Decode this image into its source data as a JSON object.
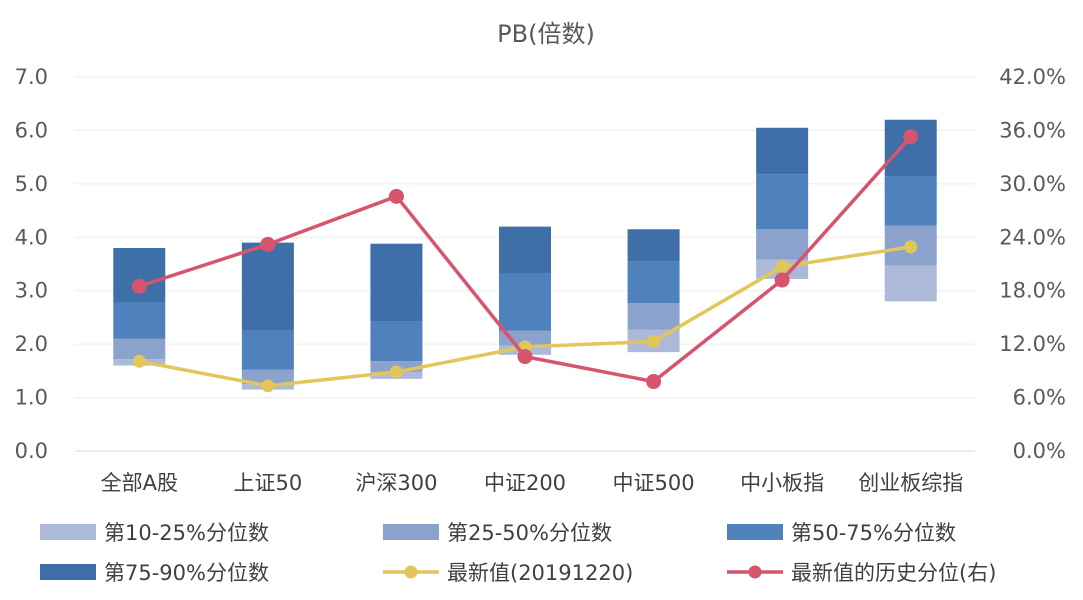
{
  "chart_data": {
    "type": "bar",
    "title": "PB(倍数)",
    "categories": [
      "全部A股",
      "上证50",
      "沪深300",
      "中证200",
      "中证500",
      "中小板指",
      "创业板综指"
    ],
    "y_left_ticks": [
      "7.0",
      "6.0",
      "5.0",
      "4.0",
      "3.0",
      "2.0",
      "1.0",
      "0.0"
    ],
    "y_right_ticks": [
      "42.0%",
      "36.0%",
      "30.0%",
      "24.0%",
      "18.0%",
      "12.0%",
      "6.0%",
      "0.0%"
    ],
    "ylim_left": [
      0,
      7
    ],
    "ylim_right": [
      0,
      42
    ],
    "floating_bars": {
      "p10": [
        1.6,
        1.15,
        1.35,
        1.8,
        1.85,
        3.22,
        2.8
      ],
      "p25": [
        1.72,
        1.25,
        1.48,
        1.97,
        2.27,
        3.58,
        3.47
      ],
      "p50": [
        2.1,
        1.52,
        1.68,
        2.25,
        2.77,
        4.15,
        4.22
      ],
      "p75": [
        2.78,
        2.25,
        2.42,
        3.32,
        3.55,
        5.18,
        5.14
      ],
      "p90": [
        3.8,
        3.9,
        3.88,
        4.2,
        4.15,
        6.05,
        6.2
      ]
    },
    "series": [
      {
        "name": "第10-25%分位数",
        "color": "#adb9d9"
      },
      {
        "name": "第25-50%分位数",
        "color": "#8aa2cc"
      },
      {
        "name": "第50-75%分位数",
        "color": "#4f81bd"
      },
      {
        "name": "第75-90%分位数",
        "color": "#3e6fa8"
      },
      {
        "name": "最新值(20191220)",
        "color": "#e3c65a",
        "axis": "left",
        "values": [
          1.68,
          1.22,
          1.48,
          1.95,
          2.05,
          3.45,
          3.82
        ]
      },
      {
        "name": "最新值的历史分位(右)",
        "color": "#d6546c",
        "axis": "right",
        "values": [
          18.5,
          23.2,
          28.6,
          10.6,
          7.8,
          19.2,
          35.3
        ]
      }
    ],
    "grid": true,
    "legend_position": "bottom"
  }
}
